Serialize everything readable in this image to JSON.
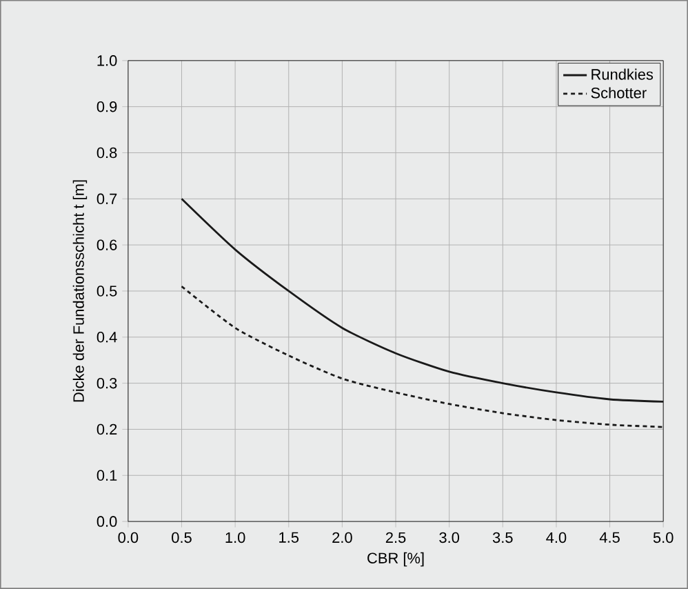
{
  "chart_data": {
    "type": "line",
    "xlabel": "CBR [%]",
    "ylabel": "Dicke der Fundationsschicht t [m]",
    "x": [
      0.5,
      1.0,
      1.5,
      2.0,
      2.5,
      3.0,
      3.5,
      4.0,
      4.5,
      5.0
    ],
    "series": [
      {
        "name": "Rundkies",
        "color": "#1a1a1a",
        "line_style": "solid",
        "values": [
          0.7,
          0.59,
          0.5,
          0.42,
          0.365,
          0.325,
          0.3,
          0.28,
          0.265,
          0.26
        ]
      },
      {
        "name": "Schotter",
        "color": "#1a1a1a",
        "line_style": "dashed",
        "values": [
          0.51,
          0.42,
          0.36,
          0.31,
          0.28,
          0.255,
          0.235,
          0.22,
          0.21,
          0.205
        ]
      }
    ],
    "xlim": [
      0,
      5
    ],
    "ylim": [
      0,
      1
    ],
    "xticks": [
      {
        "value": 0,
        "label": "0.0"
      },
      {
        "value": 0.5,
        "label": "0.5"
      },
      {
        "value": 1,
        "label": "1.0"
      },
      {
        "value": 1.5,
        "label": "1.5"
      },
      {
        "value": 2,
        "label": "2.0"
      },
      {
        "value": 2.5,
        "label": "2.5"
      },
      {
        "value": 3,
        "label": "3.0"
      },
      {
        "value": 3.5,
        "label": "3.5"
      },
      {
        "value": 4,
        "label": "4.0"
      },
      {
        "value": 4.5,
        "label": "4.5"
      },
      {
        "value": 5,
        "label": "5.0"
      }
    ],
    "yticks": [
      {
        "value": 0,
        "label": "0.0"
      },
      {
        "value": 0.1,
        "label": "0.1"
      },
      {
        "value": 0.2,
        "label": "0.2"
      },
      {
        "value": 0.3,
        "label": "0.3"
      },
      {
        "value": 0.4,
        "label": "0.4"
      },
      {
        "value": 0.5,
        "label": "0.5"
      },
      {
        "value": 0.6,
        "label": "0.6"
      },
      {
        "value": 0.7,
        "label": "0.7"
      },
      {
        "value": 0.8,
        "label": "0.8"
      },
      {
        "value": 0.9,
        "label": "0.9"
      },
      {
        "value": 1,
        "label": "1.0"
      }
    ],
    "grid": true,
    "legend": "top right",
    "marker": "none"
  }
}
